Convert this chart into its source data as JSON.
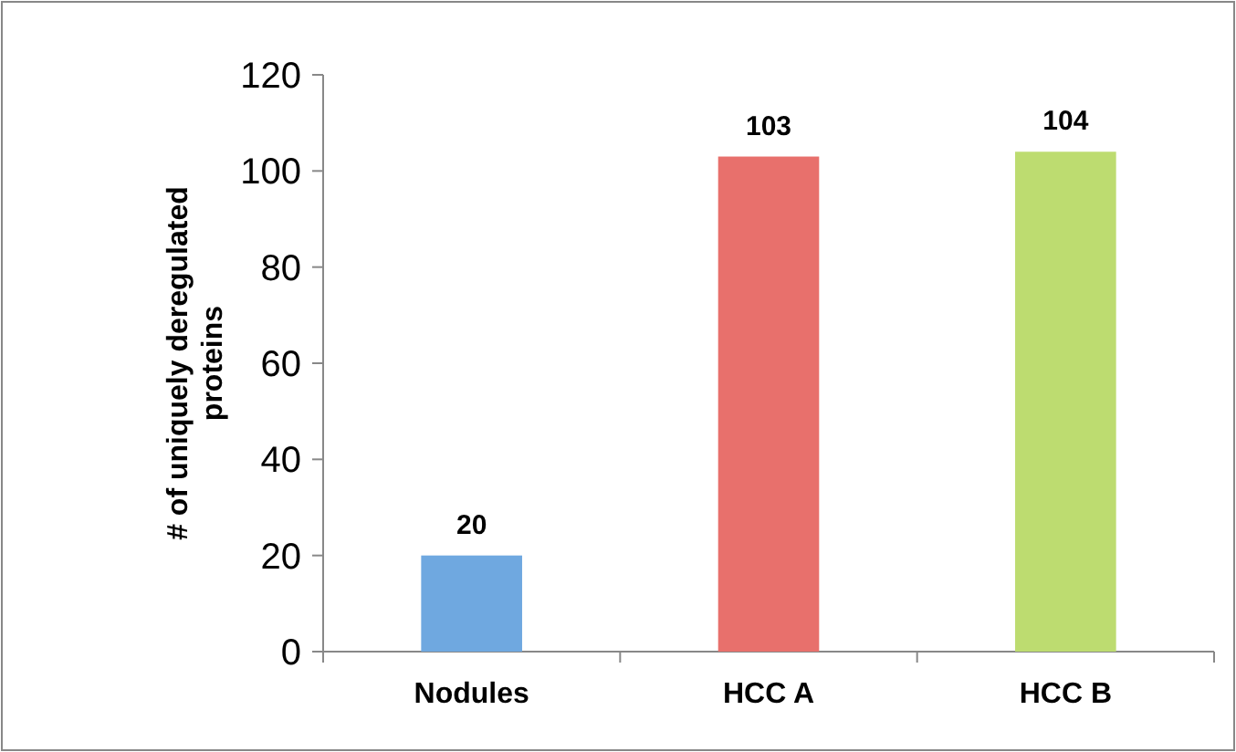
{
  "chart_data": {
    "type": "bar",
    "ylabel": "# of uniquely deregulated proteins",
    "categories": [
      "Nodules",
      "HCC A",
      "HCC B"
    ],
    "values": [
      20,
      103,
      104
    ],
    "colors": [
      "#6fa8e0",
      "#e8706c",
      "#bddc70"
    ],
    "ylim": [
      0,
      120
    ],
    "yticks": [
      0,
      20,
      40,
      60,
      80,
      100,
      120
    ],
    "data_labels": true,
    "grid": false
  }
}
